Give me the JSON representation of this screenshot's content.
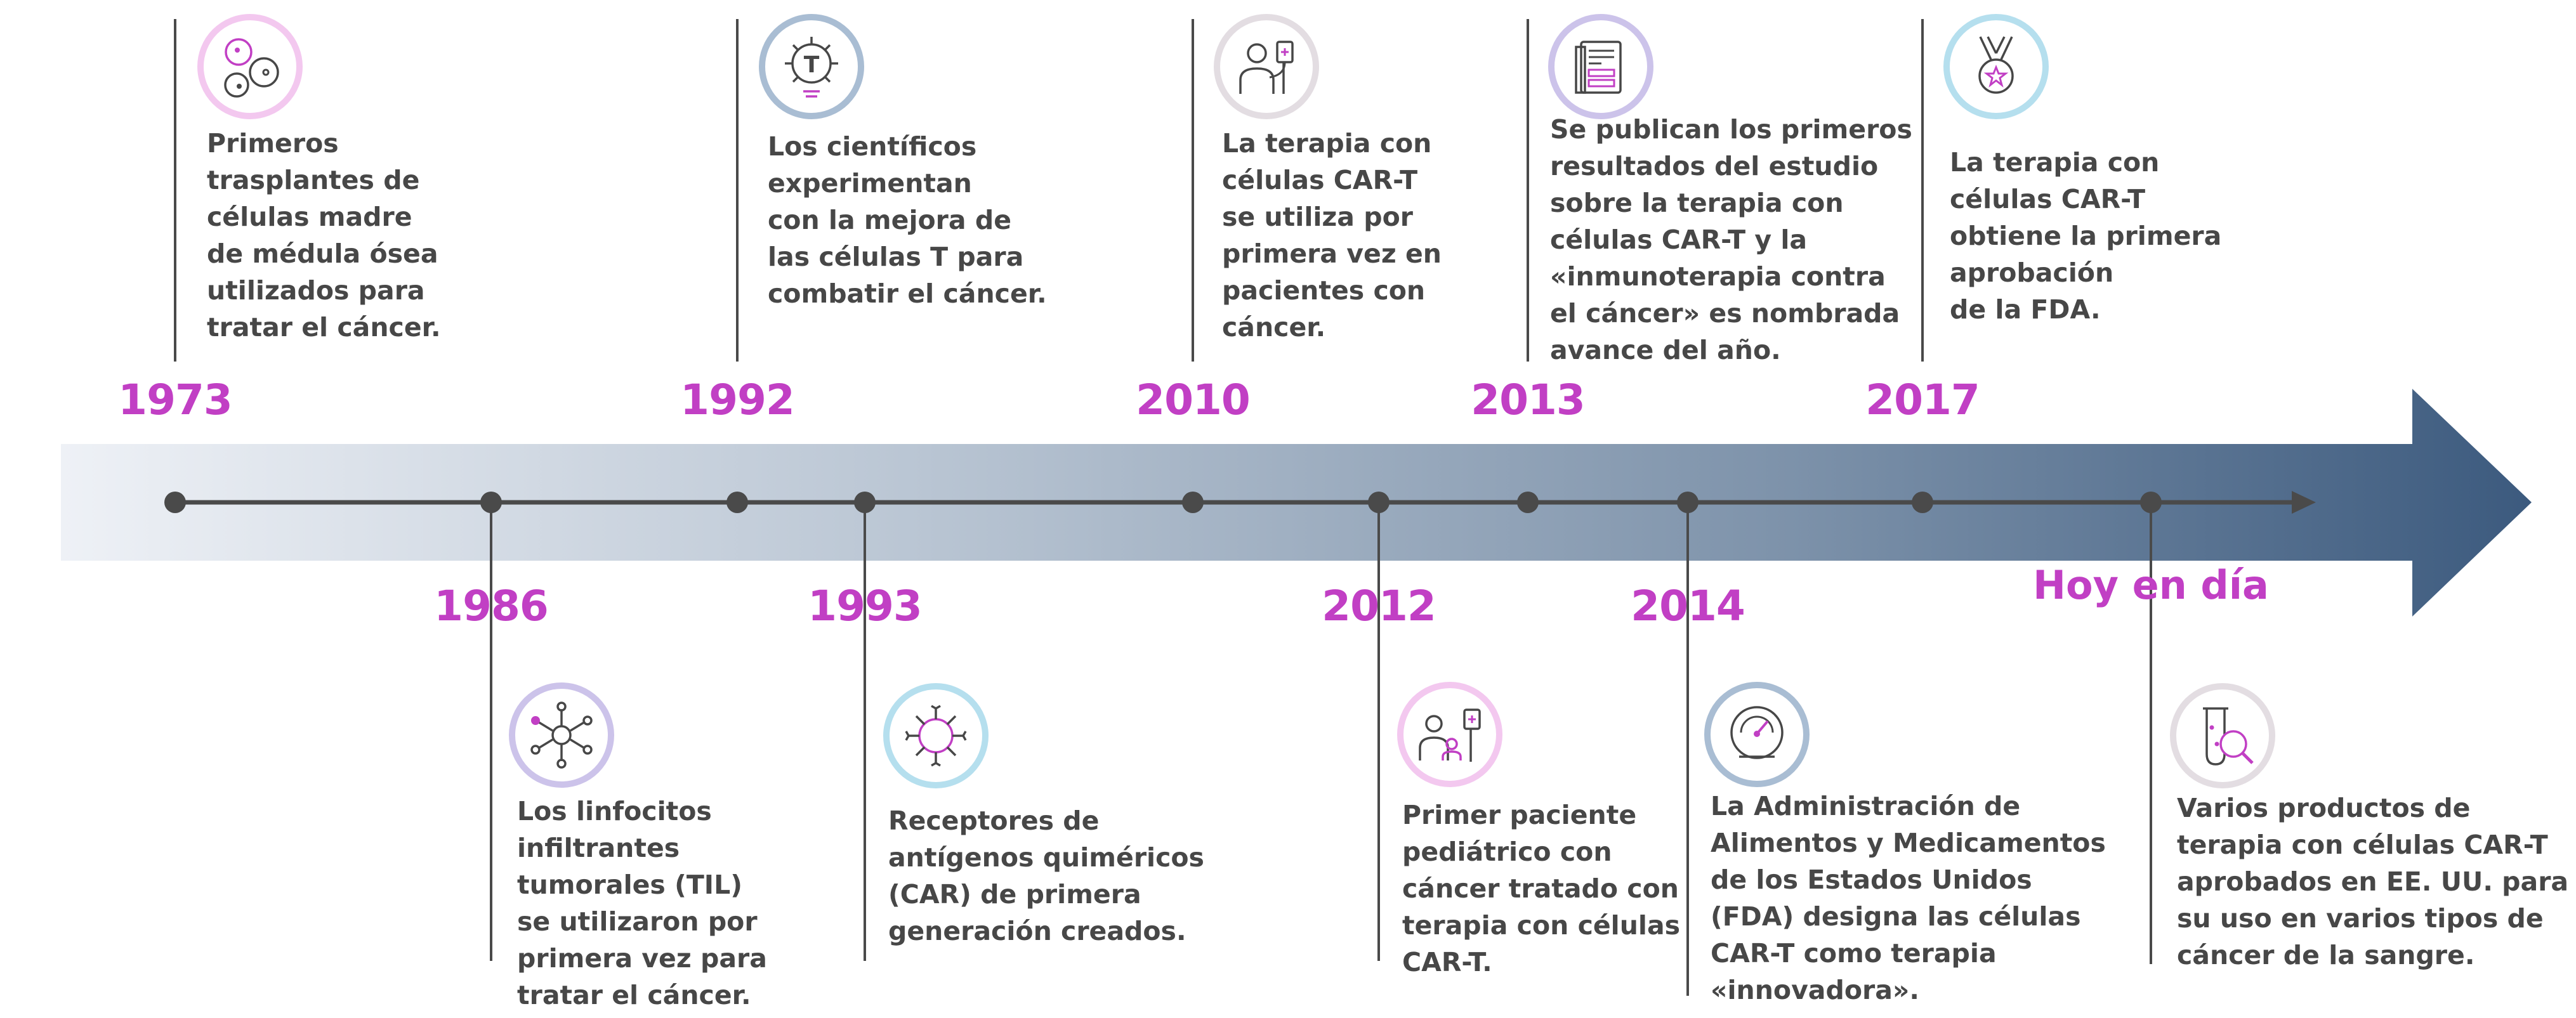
{
  "colors": {
    "year": "#c13fc4",
    "text": "#474747",
    "arrow_start": "#eef1f6",
    "arrow_end": "#3c5a7e",
    "axis_line": "#4a4a4a",
    "icon_ring_pink": "#f3c8ef",
    "icon_ring_purple": "#ccc3ea",
    "icon_ring_blue": "#a9bdd3",
    "icon_ring_cyan": "#b5dfee",
    "icon_ring_grey": "#e3dde2"
  },
  "today_label": "Hoy en día",
  "events": [
    {
      "id": "1973",
      "year": "1973",
      "icon": "stem-cells-icon",
      "lines": [
        "Primeros",
        "trasplantes de",
        "células madre",
        "de médula ósea",
        "utilizados para",
        "tratar el cáncer."
      ]
    },
    {
      "id": "1986",
      "year": "1986",
      "icon": "network-cell-icon",
      "lines": [
        "Los linfocitos",
        "infiltrantes",
        "tumorales (TIL)",
        "se utilizaron por",
        "primera vez para",
        "tratar el cáncer."
      ]
    },
    {
      "id": "1992",
      "year": "1992",
      "icon": "t-cell-icon",
      "lines": [
        "Los científicos",
        "experimentan",
        "con la mejora de",
        "las células T para",
        "combatir el cáncer."
      ]
    },
    {
      "id": "1993",
      "year": "1993",
      "icon": "receptor-cell-icon",
      "lines": [
        "Receptores de",
        "antígenos quiméricos",
        "(CAR) de primera",
        "generación creados."
      ]
    },
    {
      "id": "2010",
      "year": "2010",
      "icon": "patient-iv-icon",
      "lines": [
        "La terapia con",
        "células CAR-T",
        "se utiliza por",
        "primera vez en",
        "pacientes con",
        "cáncer."
      ]
    },
    {
      "id": "2012",
      "year": "2012",
      "icon": "pediatric-patient-icon",
      "lines": [
        "Primer paciente",
        "pediátrico con",
        "cáncer tratado con",
        "terapia con células",
        "CAR-T."
      ]
    },
    {
      "id": "2013",
      "year": "2013",
      "icon": "publication-icon",
      "lines": [
        "Se publican los primeros",
        "resultados del estudio",
        "sobre la terapia con",
        "células CAR-T y la",
        "«inmunoterapia contra",
        "el cáncer» es nombrada",
        "avance del año."
      ]
    },
    {
      "id": "2014",
      "year": "2014",
      "icon": "gauge-icon",
      "lines": [
        "La Administración de",
        "Alimentos y Medicamentos",
        "de los Estados Unidos",
        "(FDA) designa las células",
        "CAR-T como terapia",
        "«innovadora»."
      ]
    },
    {
      "id": "2017",
      "year": "2017",
      "icon": "medal-icon",
      "lines": [
        "La terapia con",
        "células CAR-T",
        "obtiene la primera",
        "aprobación",
        "de la FDA."
      ]
    },
    {
      "id": "today",
      "year": "",
      "icon": "test-tube-search-icon",
      "lines": [
        "Varios productos de",
        "terapia con células CAR-T",
        "aprobados en EE. UU. para",
        "su uso en varios tipos de",
        "cáncer de la sangre."
      ]
    }
  ]
}
